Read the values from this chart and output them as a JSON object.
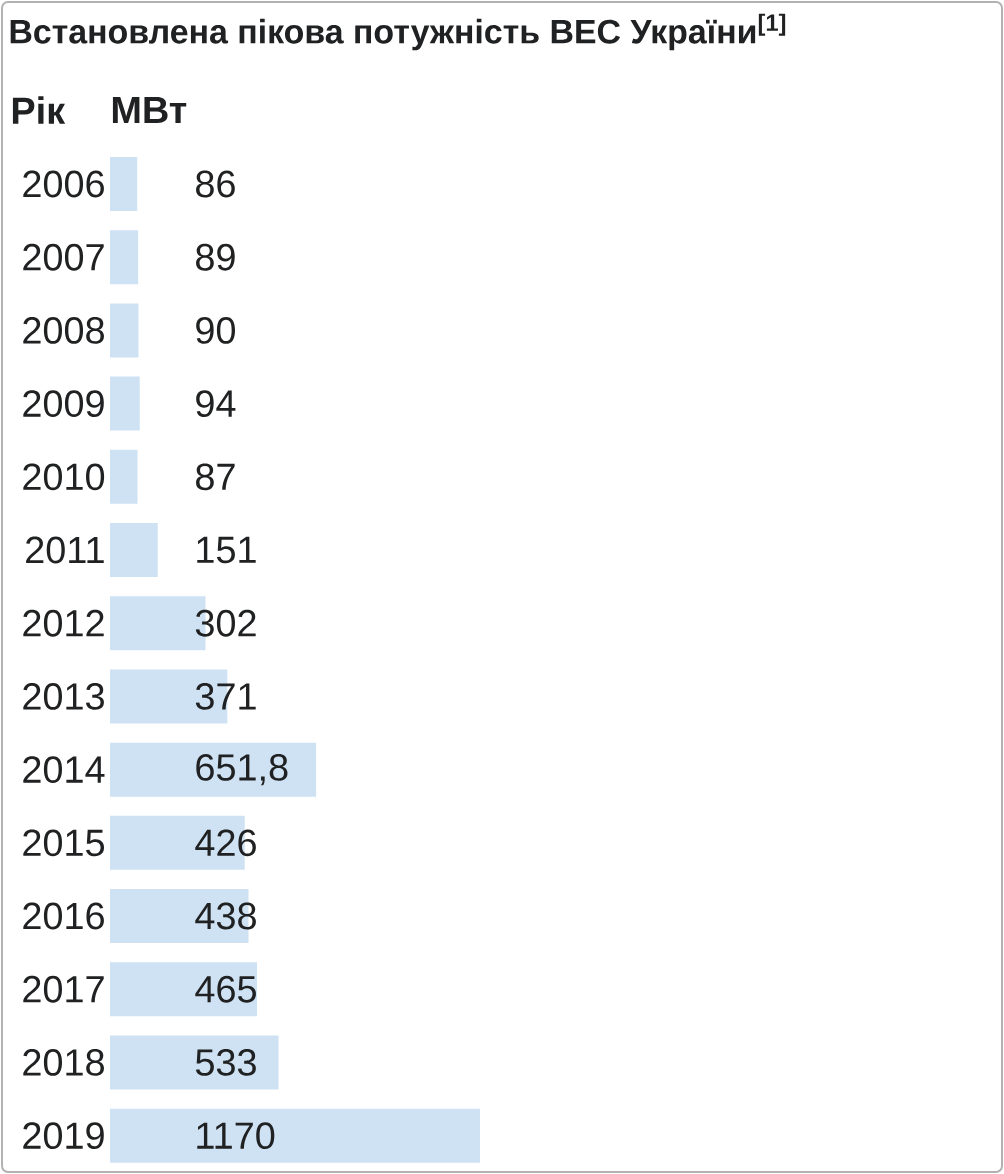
{
  "chart_data": {
    "type": "bar",
    "orientation": "horizontal",
    "title": "Встановлена пікова потужність ВЕС України$^{[1]}$",
    "ylabel": "Рік",
    "xlabel": "МВт",
    "categories": [
      "2006",
      "2007",
      "2008",
      "2009",
      "2010",
      "2011",
      "2012",
      "2013",
      "2014",
      "2015",
      "2016",
      "2017",
      "2018",
      "2019"
    ],
    "values": [
      86,
      89,
      90,
      94,
      87,
      151,
      302,
      371,
      651.8,
      426,
      438,
      465,
      533,
      1170
    ],
    "value_labels": [
      "86",
      "89",
      "90",
      "94",
      "87",
      "151",
      "302",
      "371",
      "651,8",
      "426",
      "438",
      "465",
      "533",
      "1170"
    ],
    "color": "#cfe2f3"
  }
}
